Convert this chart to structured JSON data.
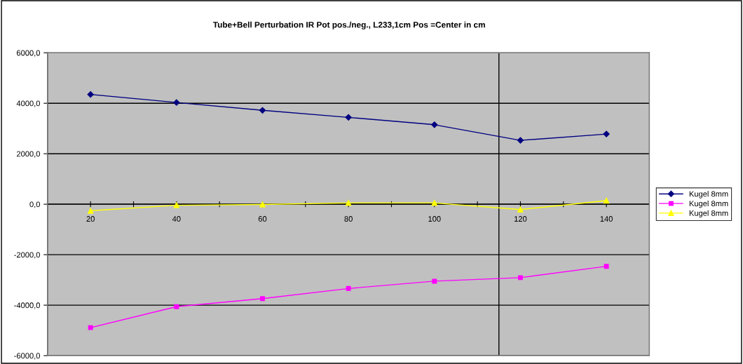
{
  "chart_data": {
    "type": "line",
    "title": "Tube+Bell Perturbation IR Pot pos./neg., L233,1cm Pos =Center in cm",
    "x": [
      20,
      40,
      60,
      80,
      100,
      120,
      140
    ],
    "series": [
      {
        "name": "Kugel 8mm",
        "color": "#000080",
        "marker": "diamond",
        "values": [
          4350,
          4030,
          3720,
          3440,
          3150,
          2530,
          2780
        ]
      },
      {
        "name": "Kugel 8mm",
        "color": "#ff00ff",
        "marker": "square",
        "values": [
          -4890,
          -4060,
          -3740,
          -3340,
          -3050,
          -2910,
          -2460
        ]
      },
      {
        "name": "Kugel 8mm",
        "color": "#ffff00",
        "marker": "triangle",
        "values": [
          -260,
          -40,
          -10,
          50,
          50,
          -210,
          140
        ]
      }
    ],
    "xlim": [
      10,
      150
    ],
    "xticks": [
      20,
      {
        "value": 30,
        "label": null
      },
      40,
      {
        "value": 50,
        "label": null
      },
      60,
      {
        "value": 70,
        "label": null
      },
      80,
      {
        "value": 90,
        "label": null
      },
      100,
      {
        "value": 110,
        "label": null
      },
      120,
      {
        "value": 130,
        "label": null
      },
      140
    ],
    "ylim": [
      -6000,
      6000
    ],
    "yticks": [
      {
        "value": -6000,
        "label": "-6000,0"
      },
      {
        "value": -4000,
        "label": "-4000,0"
      },
      {
        "value": -2000,
        "label": "-2000,0"
      },
      {
        "value": 0,
        "label": "0,0"
      },
      {
        "value": 2000,
        "label": "2000,0"
      },
      {
        "value": 4000,
        "label": "4000,0"
      },
      {
        "value": 6000,
        "label": "6000,0"
      }
    ],
    "ref_lines": [
      {
        "axis": "x",
        "value": 115,
        "label": null,
        "color": "#000000"
      }
    ],
    "grid": "y",
    "legend": "right",
    "line_style": "solid"
  }
}
